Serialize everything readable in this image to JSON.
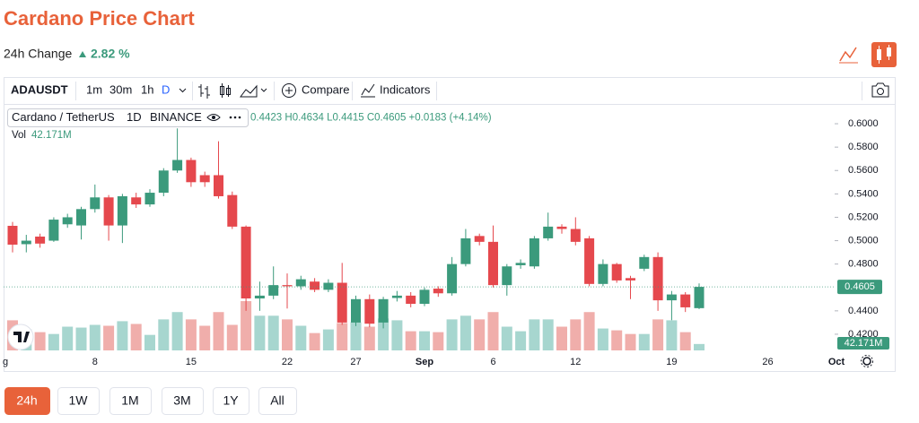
{
  "header": {
    "title": "Cardano Price Chart",
    "change_label": "24h Change",
    "change_value": "2.82 %"
  },
  "toolbar": {
    "symbol": "ADAUSDT",
    "intervals": [
      "1m",
      "30m",
      "1h",
      "D"
    ],
    "compare": "Compare",
    "indicators": "Indicators"
  },
  "legend": {
    "name": "Cardano / TetherUS",
    "interval": "1D",
    "exchange": "BINANCE",
    "ohlc": [
      "0.4423",
      "H0.4634",
      "L0.4415",
      "C0.4605",
      "+0.0183 (+4.14%)"
    ],
    "volume_label": "Vol",
    "volume_value": "42.171M"
  },
  "ranges": [
    "24h",
    "1W",
    "1M",
    "3M",
    "1Y",
    "All"
  ],
  "chart_data": {
    "type": "candlestick",
    "categories": [
      "g",
      null,
      null,
      null,
      null,
      null,
      null,
      "8",
      null,
      null,
      null,
      null,
      null,
      null,
      "15",
      null,
      null,
      null,
      null,
      null,
      null,
      "22",
      null,
      null,
      null,
      null,
      "27",
      null,
      null,
      null,
      null,
      "Sep",
      null,
      null,
      null,
      null,
      "6",
      null,
      null,
      null,
      null,
      null,
      "12",
      null,
      null,
      null,
      null,
      null,
      null,
      "19",
      null,
      null,
      null,
      null,
      null,
      null,
      "26",
      null,
      null,
      null,
      null,
      "Oct"
    ],
    "open": [
      null,
      0.5127,
      0.497,
      0.5035,
      0.5,
      0.514,
      0.513,
      0.527,
      0.537,
      0.513,
      0.537,
      0.531,
      0.541,
      0.56,
      0.569,
      0.556,
      0.556,
      0.539,
      0.512,
      0.4506,
      0.453,
      0.462,
      0.461,
      0.465,
      0.458,
      0.464,
      0.43,
      0.45,
      0.43,
      0.451,
      0.453,
      0.446,
      0.459,
      0.455,
      0.48,
      0.504,
      0.499,
      0.462,
      0.479,
      0.478,
      0.502,
      0.512,
      0.51,
      0.502,
      0.463,
      0.48,
      0.468,
      0.476,
      0.486,
      0.449,
      0.454,
      0.4423,
      null,
      null,
      null,
      null,
      null,
      null,
      null,
      null,
      null,
      null
    ],
    "high": [
      null,
      0.516,
      0.505,
      0.506,
      0.52,
      0.523,
      0.529,
      0.548,
      0.539,
      0.54,
      0.541,
      0.544,
      0.562,
      0.596,
      0.571,
      0.559,
      0.585,
      0.542,
      0.513,
      0.465,
      0.478,
      0.472,
      0.47,
      0.468,
      0.467,
      0.481,
      0.453,
      0.454,
      0.452,
      0.457,
      0.456,
      0.46,
      0.461,
      0.486,
      0.51,
      0.506,
      0.513,
      0.48,
      0.484,
      0.504,
      0.524,
      0.514,
      0.52,
      0.504,
      0.484,
      0.481,
      0.47,
      0.488,
      0.49,
      0.457,
      0.456,
      0.4634,
      null,
      null,
      null,
      null,
      null,
      null,
      null,
      null,
      null,
      null
    ],
    "low": [
      null,
      0.49,
      0.49,
      0.494,
      0.499,
      0.511,
      0.501,
      0.524,
      0.5,
      0.498,
      0.528,
      0.529,
      0.538,
      0.558,
      0.546,
      0.546,
      0.536,
      0.51,
      0.44,
      0.44,
      0.45,
      0.442,
      0.458,
      0.456,
      0.456,
      0.428,
      0.427,
      0.426,
      0.425,
      0.448,
      0.443,
      0.444,
      0.452,
      0.453,
      0.478,
      0.496,
      0.46,
      0.453,
      0.476,
      0.476,
      0.5,
      0.506,
      0.496,
      0.461,
      0.461,
      0.464,
      0.45,
      0.474,
      0.44,
      0.432,
      0.439,
      0.4415,
      null,
      null,
      null,
      null,
      null,
      null,
      null,
      null,
      null,
      null
    ],
    "close": [
      null,
      0.4966,
      0.5,
      0.4975,
      0.518,
      0.52,
      0.527,
      0.537,
      0.513,
      0.538,
      0.531,
      0.541,
      0.56,
      0.569,
      0.55,
      0.55,
      0.538,
      0.512,
      0.4506,
      0.453,
      0.462,
      0.461,
      0.467,
      0.458,
      0.464,
      0.43,
      0.45,
      0.429,
      0.45,
      0.453,
      0.446,
      0.458,
      0.455,
      0.48,
      0.502,
      0.499,
      0.462,
      0.478,
      0.481,
      0.502,
      0.512,
      0.51,
      0.499,
      0.463,
      0.48,
      0.466,
      0.466,
      0.486,
      0.449,
      0.454,
      0.443,
      0.4605,
      null,
      null,
      null,
      null,
      null,
      null,
      null,
      null,
      null,
      null
    ],
    "volume": [
      null,
      198,
      138,
      120,
      108,
      156,
      150,
      168,
      162,
      192,
      174,
      102,
      204,
      252,
      204,
      162,
      252,
      168,
      324,
      228,
      228,
      204,
      162,
      114,
      138,
      180,
      186,
      156,
      210,
      198,
      126,
      126,
      120,
      204,
      228,
      204,
      252,
      156,
      126,
      204,
      204,
      156,
      204,
      252,
      144,
      132,
      108,
      108,
      204,
      198,
      120,
      42.171,
      null,
      null,
      null,
      null,
      null,
      null,
      null,
      null,
      null,
      null
    ],
    "up_color": "#3b9a7c",
    "down_color": "#e5484d",
    "volume_up_color": "#a7d6cf",
    "volume_down_color": "#f0aeab",
    "ylim": [
      0.4054,
      0.6169
    ],
    "yticks": [
      {
        "value": 0.6,
        "label": "0.6000"
      },
      {
        "value": 0.58,
        "label": "0.5800"
      },
      {
        "value": 0.56,
        "label": "0.5600"
      },
      {
        "value": 0.54,
        "label": "0.5400"
      },
      {
        "value": 0.52,
        "label": "0.5200"
      },
      {
        "value": 0.5,
        "label": "0.5000"
      },
      {
        "value": 0.48,
        "label": "0.4800"
      },
      {
        "value": 0.44,
        "label": "0.4400"
      },
      {
        "value": 0.42,
        "label": "0.4200"
      }
    ],
    "last_price_label": "0.4605",
    "last_volume_label": "42.171M"
  }
}
